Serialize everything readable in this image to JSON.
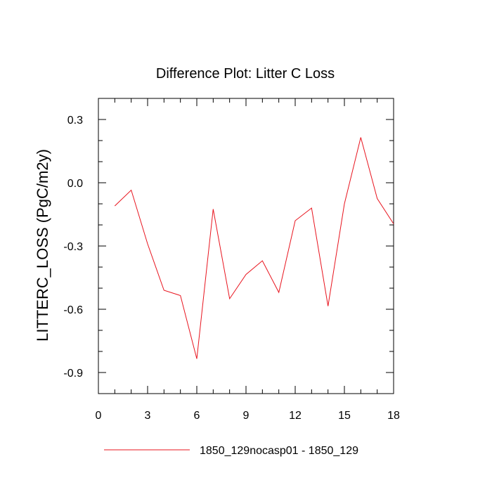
{
  "chart_data": {
    "type": "line",
    "title": "Difference Plot: Litter C Loss",
    "xlabel": "",
    "ylabel": "LITTERC_LOSS  (PgC/m2y)",
    "xlim": [
      0,
      18
    ],
    "ylim": [
      -1.0,
      0.4
    ],
    "xticks": [
      0,
      3,
      6,
      9,
      12,
      15,
      18
    ],
    "yticks": [
      0.3,
      0.0,
      -0.3,
      -0.6,
      -0.9
    ],
    "xtick_labels": [
      "0",
      "3",
      "6",
      "9",
      "12",
      "15",
      "18"
    ],
    "ytick_labels": [
      "0.3",
      "0.0",
      "-0.3",
      "-0.6",
      "-0.9"
    ],
    "grid": false,
    "legend_position": "bottom",
    "series": [
      {
        "name": "1850_129nocasp01 - 1850_129",
        "color": "#e8141e",
        "x": [
          1,
          2,
          3,
          4,
          5,
          6,
          7,
          8,
          9,
          10,
          11,
          12,
          13,
          14,
          15,
          16,
          17,
          18
        ],
        "y": [
          -0.11,
          -0.035,
          -0.29,
          -0.51,
          -0.535,
          -0.835,
          -0.125,
          -0.55,
          -0.435,
          -0.37,
          -0.52,
          -0.18,
          -0.12,
          -0.585,
          -0.1,
          0.215,
          -0.075,
          -0.195
        ]
      }
    ]
  }
}
